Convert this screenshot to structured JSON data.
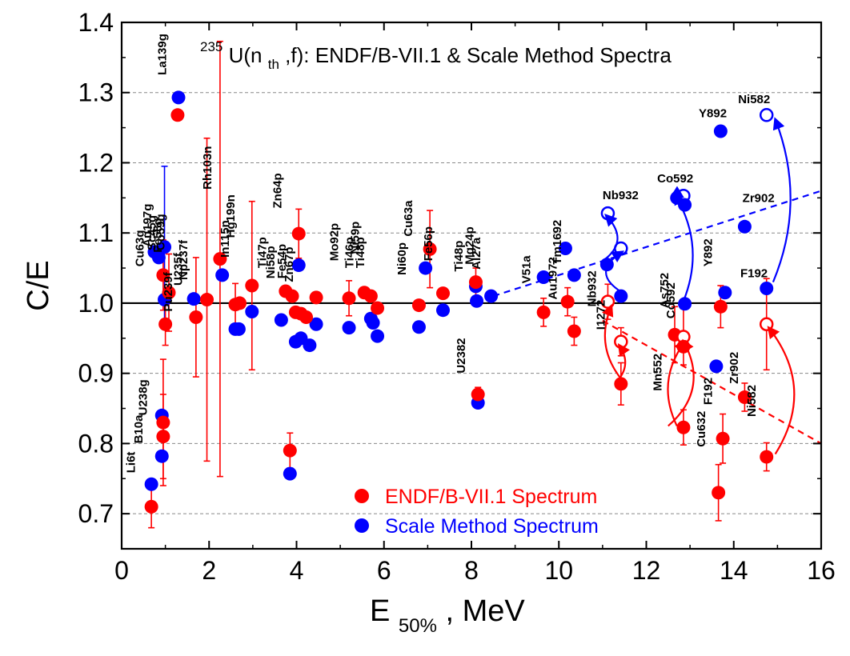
{
  "chart_data": {
    "type": "scatter",
    "title": {
      "pre": "235",
      "main": "U(n",
      "sub": "th",
      "post": ",f): ENDF/B-VII.1 & Scale Method Spectra"
    },
    "xlabel": {
      "main": "E",
      "sub": "50%",
      "post": ",  MeV"
    },
    "ylabel": "C/E",
    "xlim": [
      0,
      16
    ],
    "ylim": [
      0.65,
      1.4
    ],
    "xticks": [
      "0",
      "2",
      "4",
      "6",
      "8",
      "10",
      "12",
      "14",
      "16"
    ],
    "yticks": [
      "0.7",
      "0.8",
      "0.9",
      "1.0",
      "1.1",
      "1.2",
      "1.3",
      "1.4"
    ],
    "grid": "horizontal dashed",
    "reference_line": 1.0,
    "colors": {
      "endf": "#ff0000",
      "scale": "#0000ff",
      "axis": "#000000",
      "grid": "#888888"
    },
    "legend": {
      "placement": "bottom-center",
      "entries": [
        {
          "name": "ENDF/B-VII.1 Spectrum",
          "color": "#ff0000"
        },
        {
          "name": "Scale Method Spectrum",
          "color": "#0000ff"
        }
      ]
    },
    "series": [
      {
        "name": "ENDF/B-VII.1 Spectrum",
        "color": "#ff0000",
        "points": [
          {
            "x": 0.68,
            "y": 0.71,
            "err": 0.03
          },
          {
            "x": 0.95,
            "y": 0.83,
            "err": 0.09
          },
          {
            "x": 0.95,
            "y": 0.81,
            "err": 0.06
          },
          {
            "x": 0.95,
            "y": 1.04,
            "err": 0.05
          },
          {
            "x": 1.0,
            "y": 0.97,
            "err": 0.03
          },
          {
            "x": 1.08,
            "y": 1.015,
            "err": 0.055
          },
          {
            "x": 1.28,
            "y": 1.268
          },
          {
            "x": 1.7,
            "y": 0.98,
            "err": 0.085
          },
          {
            "x": 1.95,
            "y": 1.005,
            "err": 0.23
          },
          {
            "x": 2.25,
            "y": 1.063,
            "err": 0.31
          },
          {
            "x": 2.6,
            "y": 0.998,
            "err": 0.03
          },
          {
            "x": 2.7,
            "y": 1.0
          },
          {
            "x": 2.98,
            "y": 1.025,
            "err": 0.12
          },
          {
            "x": 3.75,
            "y": 1.017
          },
          {
            "x": 3.85,
            "y": 0.79,
            "err": 0.025
          },
          {
            "x": 3.9,
            "y": 1.01
          },
          {
            "x": 3.98,
            "y": 0.987
          },
          {
            "x": 4.05,
            "y": 1.099,
            "err": 0.035
          },
          {
            "x": 4.1,
            "y": 0.985
          },
          {
            "x": 4.22,
            "y": 0.98
          },
          {
            "x": 4.45,
            "y": 1.008
          },
          {
            "x": 5.2,
            "y": 1.007,
            "err": 0.025
          },
          {
            "x": 5.55,
            "y": 1.015
          },
          {
            "x": 5.7,
            "y": 1.01
          },
          {
            "x": 5.85,
            "y": 0.993
          },
          {
            "x": 6.8,
            "y": 0.997
          },
          {
            "x": 7.05,
            "y": 1.077,
            "err": 0.055
          },
          {
            "x": 7.35,
            "y": 1.014
          },
          {
            "x": 8.1,
            "y": 1.03,
            "err": 0.02
          },
          {
            "x": 8.15,
            "y": 0.87,
            "err": 0.01
          },
          {
            "x": 9.65,
            "y": 0.987,
            "err": 0.02
          },
          {
            "x": 10.2,
            "y": 1.002,
            "err": 0.02
          },
          {
            "x": 10.35,
            "y": 0.96,
            "err": 0.02
          },
          {
            "x": 11.12,
            "y": 1.002,
            "open": true,
            "err": 0.025
          },
          {
            "x": 11.42,
            "y": 0.945,
            "open": true,
            "err": 0.02
          },
          {
            "x": 11.42,
            "y": 0.885,
            "err": 0.03
          },
          {
            "x": 12.65,
            "y": 0.955,
            "err": 0.04
          },
          {
            "x": 12.85,
            "y": 0.952,
            "open": true,
            "err": 0.04
          },
          {
            "x": 12.85,
            "y": 0.938
          },
          {
            "x": 12.85,
            "y": 0.823,
            "err": 0.025
          },
          {
            "x": 13.65,
            "y": 0.73,
            "err": 0.04
          },
          {
            "x": 13.7,
            "y": 0.995,
            "err": 0.03
          },
          {
            "x": 13.75,
            "y": 0.807,
            "err": 0.035
          },
          {
            "x": 14.25,
            "y": 0.866,
            "err": 0.02
          },
          {
            "x": 14.75,
            "y": 0.97,
            "open": true,
            "err": 0.065
          },
          {
            "x": 14.75,
            "y": 0.781,
            "err": 0.02
          }
        ]
      },
      {
        "name": "Scale Method Spectrum",
        "color": "#0000ff",
        "points": [
          {
            "x": 0.68,
            "y": 0.742
          },
          {
            "x": 0.75,
            "y": 1.073
          },
          {
            "x": 0.85,
            "y": 1.065
          },
          {
            "x": 0.92,
            "y": 0.84
          },
          {
            "x": 0.92,
            "y": 0.782
          },
          {
            "x": 0.98,
            "y": 1.08,
            "err": 0.115
          },
          {
            "x": 0.98,
            "y": 1.005
          },
          {
            "x": 1.3,
            "y": 1.293
          },
          {
            "x": 1.65,
            "y": 1.006
          },
          {
            "x": 2.3,
            "y": 1.04
          },
          {
            "x": 2.6,
            "y": 0.963
          },
          {
            "x": 2.68,
            "y": 0.963
          },
          {
            "x": 2.98,
            "y": 0.988
          },
          {
            "x": 3.65,
            "y": 0.976
          },
          {
            "x": 3.85,
            "y": 0.757
          },
          {
            "x": 3.98,
            "y": 0.945
          },
          {
            "x": 4.05,
            "y": 1.054
          },
          {
            "x": 4.1,
            "y": 0.95
          },
          {
            "x": 4.3,
            "y": 0.94
          },
          {
            "x": 4.45,
            "y": 0.97
          },
          {
            "x": 5.2,
            "y": 0.965
          },
          {
            "x": 5.7,
            "y": 0.978
          },
          {
            "x": 5.75,
            "y": 0.972
          },
          {
            "x": 5.85,
            "y": 0.953
          },
          {
            "x": 6.8,
            "y": 0.966
          },
          {
            "x": 6.95,
            "y": 1.05
          },
          {
            "x": 7.35,
            "y": 0.99
          },
          {
            "x": 8.1,
            "y": 1.024
          },
          {
            "x": 8.12,
            "y": 1.003
          },
          {
            "x": 8.15,
            "y": 0.858
          },
          {
            "x": 8.45,
            "y": 1.01
          },
          {
            "x": 9.65,
            "y": 1.037
          },
          {
            "x": 10.15,
            "y": 1.078
          },
          {
            "x": 10.35,
            "y": 1.04
          },
          {
            "x": 11.1,
            "y": 1.055
          },
          {
            "x": 11.12,
            "y": 1.128,
            "open": true
          },
          {
            "x": 11.42,
            "y": 1.078,
            "open": true
          },
          {
            "x": 11.42,
            "y": 1.01
          },
          {
            "x": 12.7,
            "y": 1.15
          },
          {
            "x": 12.85,
            "y": 1.153,
            "open": true
          },
          {
            "x": 12.88,
            "y": 1.14
          },
          {
            "x": 12.88,
            "y": 0.999
          },
          {
            "x": 13.6,
            "y": 0.91
          },
          {
            "x": 13.7,
            "y": 1.245
          },
          {
            "x": 13.8,
            "y": 1.015
          },
          {
            "x": 14.25,
            "y": 1.109
          },
          {
            "x": 14.75,
            "y": 1.268,
            "open": true
          },
          {
            "x": 14.75,
            "y": 1.021
          }
        ]
      }
    ],
    "annotations": [
      {
        "text": "Li6t",
        "x": 0.3,
        "y": 0.758,
        "rot": -90
      },
      {
        "text": "B10a",
        "x": 0.48,
        "y": 0.8,
        "rot": -90
      },
      {
        "text": "U238g",
        "x": 0.58,
        "y": 0.84,
        "rot": -90
      },
      {
        "text": "Cu63g",
        "x": 0.5,
        "y": 1.052,
        "rot": -90
      },
      {
        "text": "Au197g",
        "x": 0.68,
        "y": 1.08,
        "rot": -90
      },
      {
        "text": "Sc45g",
        "x": 0.78,
        "y": 1.075,
        "rot": -90
      },
      {
        "text": "Fe58g",
        "x": 0.92,
        "y": 1.072,
        "rot": -90
      },
      {
        "text": "Co59g",
        "x": 0.98,
        "y": 1.075,
        "rot": -90
      },
      {
        "text": "La139g",
        "x": 1.02,
        "y": 1.325,
        "rot": -90
      },
      {
        "text": "Pu239f",
        "x": 1.15,
        "y": 0.988,
        "rot": -90
      },
      {
        "text": "U235f",
        "x": 1.38,
        "y": 1.025,
        "rot": -90
      },
      {
        "text": "Np237f",
        "x": 1.5,
        "y": 1.033,
        "rot": -90
      },
      {
        "text": "Rh103n",
        "x": 2.05,
        "y": 1.162,
        "rot": -90
      },
      {
        "text": "In115n",
        "x": 2.45,
        "y": 1.065,
        "rot": -90
      },
      {
        "text": "Hg199n",
        "x": 2.58,
        "y": 1.093,
        "rot": -90
      },
      {
        "text": "Ti47p",
        "x": 3.3,
        "y": 1.05,
        "rot": -90
      },
      {
        "text": "Ni58p",
        "x": 3.5,
        "y": 1.035,
        "rot": -90
      },
      {
        "text": "Fe54p",
        "x": 3.75,
        "y": 1.035,
        "rot": -90
      },
      {
        "text": "Zn64p",
        "x": 3.65,
        "y": 1.135,
        "rot": -90
      },
      {
        "text": "Zn67p",
        "x": 3.92,
        "y": 1.03,
        "rot": -90
      },
      {
        "text": "Mo92p",
        "x": 4.95,
        "y": 1.06,
        "rot": -90
      },
      {
        "text": "Ti46p",
        "x": 5.3,
        "y": 1.05,
        "rot": -90
      },
      {
        "text": "Ni59p",
        "x": 5.43,
        "y": 1.07,
        "rot": -90
      },
      {
        "text": "Ti48p",
        "x": 5.55,
        "y": 1.05,
        "rot": -90
      },
      {
        "text": "Ni60p",
        "x": 6.5,
        "y": 1.04,
        "rot": -90
      },
      {
        "text": "Cu63a",
        "x": 6.65,
        "y": 1.095,
        "rot": -90
      },
      {
        "text": "Fe56p",
        "x": 7.1,
        "y": 1.06,
        "rot": -90
      },
      {
        "text": "Ti48p",
        "x": 7.8,
        "y": 1.045,
        "rot": -90
      },
      {
        "text": "Mg24p",
        "x": 8.05,
        "y": 1.055,
        "rot": -90
      },
      {
        "text": "Al27a",
        "x": 8.2,
        "y": 1.048,
        "rot": -90
      },
      {
        "text": "U2382",
        "x": 7.85,
        "y": 0.9,
        "rot": -90
      },
      {
        "text": "V51a",
        "x": 9.35,
        "y": 1.028,
        "rot": -90
      },
      {
        "text": "Au1972",
        "x": 9.95,
        "y": 1.005,
        "rot": -90
      },
      {
        "text": "Tm1692",
        "x": 10.05,
        "y": 1.055,
        "rot": -90
      },
      {
        "text": "Nb932",
        "x": 11.0,
        "y": 1.148,
        "rot": 0
      },
      {
        "text": "Nb932",
        "x": 10.85,
        "y": 0.995,
        "rot": -90
      },
      {
        "text": "I1272",
        "x": 11.05,
        "y": 0.962,
        "rot": -90
      },
      {
        "text": "Co592",
        "x": 12.25,
        "y": 1.172,
        "rot": 0
      },
      {
        "text": "As752",
        "x": 12.5,
        "y": 0.993,
        "rot": -90
      },
      {
        "text": "Co592",
        "x": 12.65,
        "y": 0.978,
        "rot": -90
      },
      {
        "text": "Mn552",
        "x": 12.35,
        "y": 0.875,
        "rot": -90
      },
      {
        "text": "Cu632",
        "x": 13.35,
        "y": 0.795,
        "rot": -90
      },
      {
        "text": "F192",
        "x": 13.5,
        "y": 0.855,
        "rot": -90
      },
      {
        "text": "Zr902",
        "x": 14.1,
        "y": 0.885,
        "rot": -90
      },
      {
        "text": "Ni582",
        "x": 14.5,
        "y": 0.838,
        "rot": -90
      },
      {
        "text": "Y892",
        "x": 13.5,
        "y": 1.052,
        "rot": -90
      },
      {
        "text": "Y892",
        "x": 13.2,
        "y": 1.265,
        "rot": 0
      },
      {
        "text": "Ni582",
        "x": 14.1,
        "y": 1.285,
        "rot": 0
      },
      {
        "text": "Zr902",
        "x": 14.2,
        "y": 1.144,
        "rot": 0
      },
      {
        "text": "F192",
        "x": 14.15,
        "y": 1.037,
        "rot": 0
      }
    ],
    "trend_lines": [
      {
        "color": "#0000ff",
        "from": [
          8.5,
          1.01
        ],
        "to": [
          16.0,
          1.16
        ],
        "style": "dashed"
      },
      {
        "color": "#ff0000",
        "from": [
          11.0,
          0.975
        ],
        "to": [
          16.0,
          0.8
        ],
        "style": "dashed"
      }
    ],
    "arrows": [
      {
        "color": "#0000ff",
        "from": [
          10.95,
          1.058
        ],
        "to": [
          11.08,
          1.125
        ],
        "bend": 0.6
      },
      {
        "color": "#0000ff",
        "from": [
          11.45,
          1.015
        ],
        "to": [
          11.45,
          1.073
        ],
        "bend": -0.8
      },
      {
        "color": "#0000ff",
        "from": [
          12.68,
          1.15
        ],
        "to": [
          12.82,
          1.152
        ],
        "bend": -0.5
      },
      {
        "color": "#0000ff",
        "from": [
          12.85,
          1.003
        ],
        "to": [
          12.65,
          1.155
        ],
        "bend": 0.25
      },
      {
        "color": "#0000ff",
        "from": [
          14.9,
          1.03
        ],
        "to": [
          14.95,
          1.262
        ],
        "bend": 0.2
      },
      {
        "color": "#ff0000",
        "from": [
          11.32,
          0.888
        ],
        "to": [
          11.38,
          0.94
        ],
        "bend": 0.4
      },
      {
        "color": "#ff0000",
        "from": [
          11.45,
          0.89
        ],
        "to": [
          11.2,
          0.996
        ],
        "bend": -0.3
      },
      {
        "color": "#ff0000",
        "from": [
          12.7,
          0.825
        ],
        "to": [
          12.88,
          0.945
        ],
        "bend": -0.3
      },
      {
        "color": "#ff0000",
        "from": [
          12.5,
          0.825
        ],
        "to": [
          12.85,
          0.946
        ],
        "bend": 0.4
      },
      {
        "color": "#ff0000",
        "from": [
          14.95,
          0.785
        ],
        "to": [
          14.8,
          0.965
        ],
        "bend": 0.35
      }
    ]
  }
}
